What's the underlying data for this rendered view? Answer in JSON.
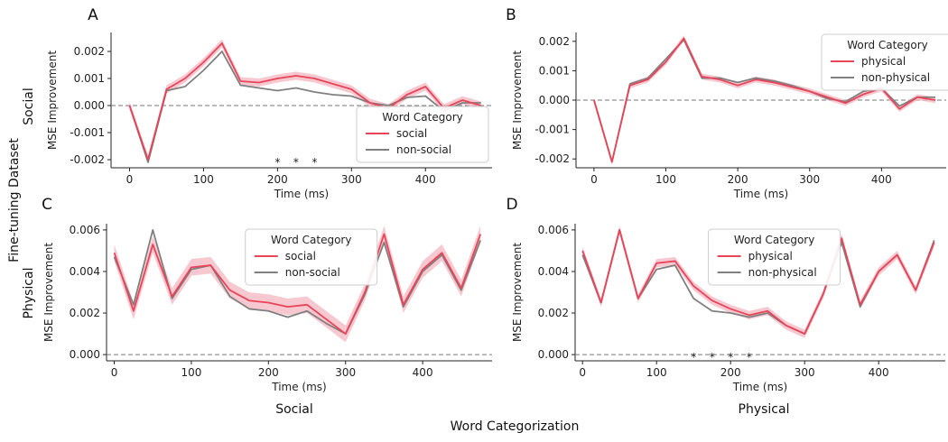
{
  "figure": {
    "row_labels": [
      "Social",
      "Physical"
    ],
    "col_labels": [
      "Social",
      "Physical"
    ],
    "y_super_label": "Fine-tuning Dataset",
    "x_super_label": "Word Categorization"
  },
  "colors": {
    "highlight": "#e8445a",
    "band": "#f4b6bf",
    "baseline": "#808080"
  },
  "chart_data": [
    {
      "id": "A",
      "type": "line",
      "xlabel": "Time (ms)",
      "ylabel": "MSE Improvement",
      "xlim": [
        -25,
        490
      ],
      "ylim": [
        -0.0023,
        0.0027
      ],
      "xticks": [
        0,
        100,
        200,
        300,
        400
      ],
      "xtick_labels": [
        "0",
        "100",
        "200",
        "300",
        "400"
      ],
      "yticks": [
        -0.002,
        -0.001,
        0,
        0.001,
        0.002
      ],
      "ytick_labels": [
        "-0.002",
        "-0.001",
        "0.000",
        "0.001",
        "0.002"
      ],
      "legend": {
        "title": "Word Category",
        "position": "lower-right"
      },
      "x": [
        0,
        25,
        50,
        75,
        100,
        125,
        150,
        175,
        200,
        225,
        250,
        275,
        300,
        325,
        350,
        375,
        400,
        425,
        450,
        475
      ],
      "series": [
        {
          "name": "social",
          "color": "#e8445a",
          "values": [
            0.0,
            -0.002,
            0.0006,
            0.001,
            0.0016,
            0.0023,
            0.0009,
            0.00085,
            0.001,
            0.0011,
            0.001,
            0.0008,
            0.0006,
            0.0001,
            -0.0001,
            0.0004,
            0.0007,
            -0.0001,
            0.0002,
            0.0
          ],
          "band": 0.00015
        },
        {
          "name": "non-social",
          "color": "#808080",
          "values": [
            0.0,
            -0.0021,
            0.00055,
            0.0007,
            0.0013,
            0.002,
            0.00075,
            0.00065,
            0.00055,
            0.00065,
            0.0005,
            0.0004,
            0.00035,
            0.0001,
            0.0,
            0.0003,
            0.00035,
            -0.0002,
            0.0001,
            0.0001
          ]
        }
      ],
      "significance_x": [
        200,
        225,
        250
      ]
    },
    {
      "id": "B",
      "type": "line",
      "xlabel": "Time (ms)",
      "ylabel": "MSE Improvement",
      "xlim": [
        -25,
        490
      ],
      "ylim": [
        -0.0023,
        0.0023
      ],
      "xticks": [
        0,
        100,
        200,
        300,
        400
      ],
      "xtick_labels": [
        "0",
        "100",
        "200",
        "300",
        "400"
      ],
      "yticks": [
        -0.002,
        -0.001,
        0,
        0.001,
        0.002
      ],
      "ytick_labels": [
        "-0.002",
        "-0.001",
        "0.000",
        "0.001",
        "0.002"
      ],
      "legend": {
        "title": "Word Category",
        "position": "upper-right"
      },
      "x": [
        0,
        25,
        50,
        75,
        100,
        125,
        150,
        175,
        200,
        225,
        250,
        275,
        300,
        325,
        350,
        375,
        400,
        425,
        450,
        475
      ],
      "series": [
        {
          "name": "physical",
          "color": "#e8445a",
          "values": [
            0.0,
            -0.0021,
            0.0005,
            0.0007,
            0.0013,
            0.0021,
            0.0008,
            0.0007,
            0.0005,
            0.0007,
            0.0006,
            0.00045,
            0.0003,
            0.0001,
            -0.0001,
            0.0002,
            0.0004,
            -0.0003,
            0.0001,
            0.0
          ],
          "band": 0.0001
        },
        {
          "name": "non-physical",
          "color": "#808080",
          "values": [
            0.0,
            -0.0021,
            0.00055,
            0.00075,
            0.0014,
            0.00205,
            0.00075,
            0.00075,
            0.0006,
            0.00075,
            0.00065,
            0.0005,
            0.0003,
            5e-05,
            -5e-05,
            0.0003,
            0.0004,
            -0.0002,
            0.0001,
            0.0001
          ]
        }
      ],
      "significance_x": []
    },
    {
      "id": "C",
      "type": "line",
      "xlabel": "Time (ms)",
      "ylabel": "MSE Improvement",
      "xlim": [
        -10,
        490
      ],
      "ylim": [
        -0.0003,
        0.0063
      ],
      "xticks": [
        0,
        100,
        200,
        300,
        400
      ],
      "xtick_labels": [
        "0",
        "100",
        "200",
        "300",
        "400"
      ],
      "yticks": [
        0,
        0.002,
        0.004,
        0.006
      ],
      "ytick_labels": [
        "0.000",
        "0.002",
        "0.004",
        "0.006"
      ],
      "legend": {
        "title": "Word Category",
        "position": "upper-center"
      },
      "x": [
        0,
        25,
        50,
        75,
        100,
        125,
        150,
        175,
        200,
        225,
        250,
        275,
        300,
        325,
        350,
        375,
        400,
        425,
        450,
        475
      ],
      "series": [
        {
          "name": "social",
          "color": "#e8445a",
          "values": [
            0.0049,
            0.0021,
            0.0053,
            0.0028,
            0.0042,
            0.0043,
            0.0031,
            0.0026,
            0.0025,
            0.0023,
            0.0024,
            0.0017,
            0.001,
            0.003,
            0.0058,
            0.0024,
            0.0041,
            0.0049,
            0.0032,
            0.0058
          ],
          "band": 0.0004
        },
        {
          "name": "non-social",
          "color": "#808080",
          "values": [
            0.0047,
            0.0024,
            0.006,
            0.0027,
            0.0041,
            0.0043,
            0.0028,
            0.0022,
            0.0021,
            0.0018,
            0.0021,
            0.0015,
            0.001,
            0.0029,
            0.0054,
            0.0023,
            0.004,
            0.0048,
            0.0031,
            0.0055
          ]
        }
      ],
      "significance_x": []
    },
    {
      "id": "D",
      "type": "line",
      "xlabel": "Time (ms)",
      "ylabel": "MSE Improvement",
      "xlim": [
        -10,
        490
      ],
      "ylim": [
        -0.0003,
        0.0063
      ],
      "xticks": [
        0,
        100,
        200,
        300,
        400
      ],
      "xtick_labels": [
        "0",
        "100",
        "200",
        "300",
        "400"
      ],
      "yticks": [
        0,
        0.002,
        0.004,
        0.006
      ],
      "ytick_labels": [
        "0.000",
        "0.002",
        "0.004",
        "0.006"
      ],
      "legend": {
        "title": "Word Category",
        "position": "upper-center"
      },
      "x": [
        0,
        25,
        50,
        75,
        100,
        125,
        150,
        175,
        200,
        225,
        250,
        275,
        300,
        325,
        350,
        375,
        400,
        425,
        450,
        475
      ],
      "series": [
        {
          "name": "physical",
          "color": "#e8445a",
          "values": [
            0.005,
            0.0025,
            0.006,
            0.0027,
            0.0044,
            0.0045,
            0.0033,
            0.0026,
            0.0022,
            0.0019,
            0.0021,
            0.0014,
            0.001,
            0.0029,
            0.0056,
            0.0024,
            0.004,
            0.0048,
            0.0031,
            0.0054
          ],
          "band": 0.0002
        },
        {
          "name": "non-physical",
          "color": "#808080",
          "values": [
            0.0048,
            0.0025,
            0.006,
            0.0027,
            0.0041,
            0.0043,
            0.0027,
            0.0021,
            0.002,
            0.0018,
            0.002,
            0.0014,
            0.001,
            0.0029,
            0.0054,
            0.0023,
            0.004,
            0.0048,
            0.0031,
            0.0055
          ]
        }
      ],
      "significance_x": [
        150,
        175,
        200,
        225
      ]
    }
  ]
}
